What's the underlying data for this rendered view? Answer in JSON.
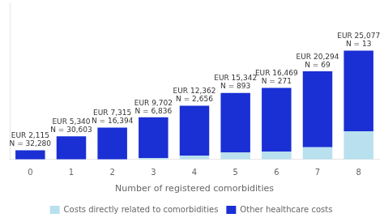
{
  "chart_data": {
    "type": "bar",
    "stacked": true,
    "categories": [
      0,
      1,
      2,
      3,
      4,
      5,
      6,
      7,
      8
    ],
    "series": [
      {
        "name": "Costs directly related to comorbidities",
        "color": "#b8e0ee",
        "values": [
          0,
          0,
          0,
          350,
          900,
          1600,
          1800,
          2800,
          6500
        ]
      },
      {
        "name": "Other healthcare costs",
        "color": "#1a2fd4",
        "values": [
          2115,
          5340,
          7315,
          9352,
          11462,
          13742,
          14669,
          17494,
          18577
        ]
      }
    ],
    "xlabel": "Number of registered comorbidities",
    "ylim": [
      0,
      36000
    ],
    "tick_labels": "x",
    "grid": false,
    "legend": "bottom",
    "annotations": [
      {
        "x": 0,
        "text": [
          "EUR 2,115",
          "N = 32,280"
        ]
      },
      {
        "x": 1,
        "text": [
          "EUR 5,340",
          "N = 30,603"
        ]
      },
      {
        "x": 2,
        "text": [
          "EUR 7,315",
          "N = 16,394"
        ]
      },
      {
        "x": 3,
        "text": [
          "EUR 9,702",
          "N = 6,836"
        ]
      },
      {
        "x": 4,
        "text": [
          "EUR 12,362",
          "N = 2,656"
        ]
      },
      {
        "x": 5,
        "text": [
          "EUR 15,342",
          "N = 893"
        ]
      },
      {
        "x": 6,
        "text": [
          "EUR 16,469",
          "N = 271"
        ]
      },
      {
        "x": 7,
        "text": [
          "EUR 20,294",
          "N = 69"
        ]
      },
      {
        "x": 8,
        "text": [
          "EUR 25,077",
          "N = 13"
        ]
      }
    ]
  }
}
